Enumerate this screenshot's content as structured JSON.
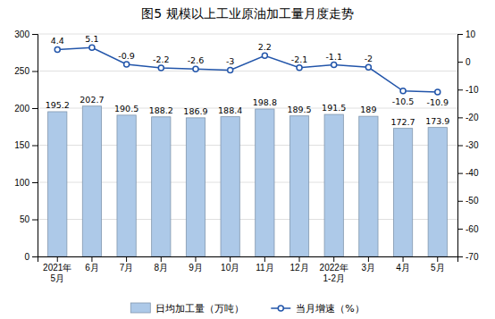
{
  "chart_data": {
    "type": "bar",
    "title": "图5  规模以上工业原油加工量月度走势",
    "categories": [
      "2021年\n5月",
      "6月",
      "7月",
      "8月",
      "9月",
      "10月",
      "11月",
      "12月",
      "2022年\n1-2月",
      "3月",
      "4月",
      "5月"
    ],
    "series": [
      {
        "name": "日均加工量（万吨）",
        "type": "bar",
        "color": "#adc9e8",
        "values": [
          195.2,
          202.7,
          190.5,
          188.2,
          186.9,
          188.4,
          198.8,
          189.5,
          191.5,
          189.0,
          172.7,
          173.9
        ]
      },
      {
        "name": "当月增速（%）",
        "type": "line",
        "axis": "y2",
        "color": "#2255aa",
        "marker": "circle",
        "values": [
          4.4,
          5.1,
          -0.9,
          -2.2,
          -2.6,
          -3.0,
          2.2,
          -2.1,
          -1.1,
          -2.0,
          -10.5,
          -10.9
        ]
      }
    ],
    "ylim": [
      0,
      300
    ],
    "yticks": [
      0,
      50,
      100,
      150,
      200,
      250,
      300
    ],
    "y2lim": [
      -70,
      10
    ],
    "y2ticks": [
      -70,
      -60,
      -50,
      -40,
      -30,
      -20,
      -10,
      0,
      10
    ],
    "grid": true,
    "legend": "bottom",
    "data_labels": true
  }
}
